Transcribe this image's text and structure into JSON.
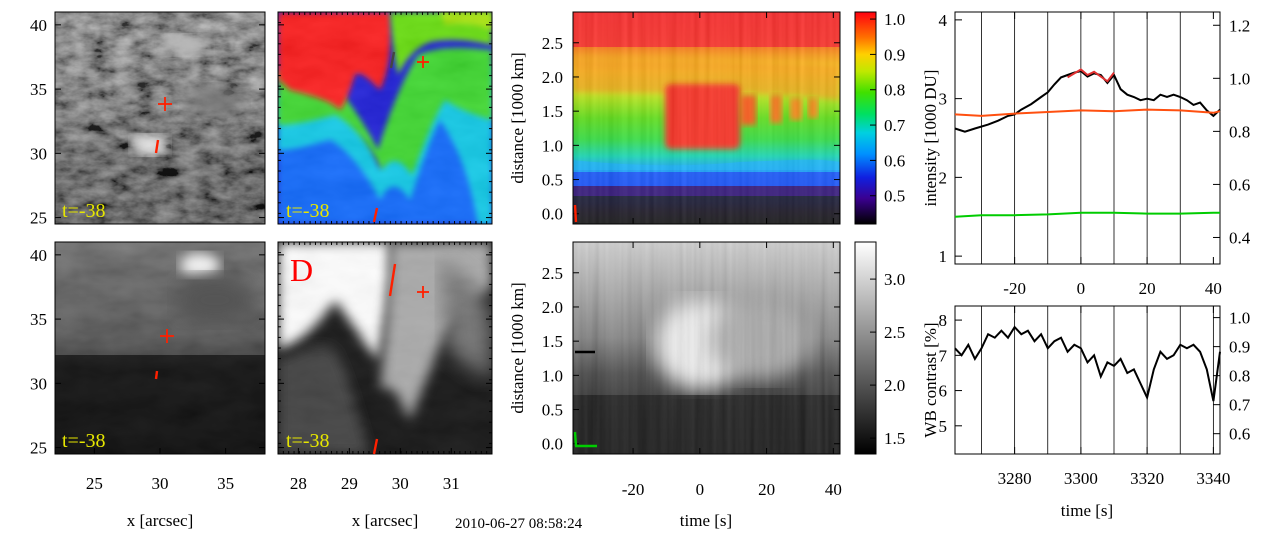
{
  "timestamp": "2010-06-27 08:58:24",
  "colors": {
    "yellow_label": "#e6e600",
    "red_marker": "#ff2000",
    "letter_red": "#ff0000",
    "line_black": "#000000",
    "line_red": "#e03030",
    "line_orange": "#ff5010",
    "line_green": "#00cc00"
  },
  "chart_data": [
    {
      "id": "img-top-1",
      "type": "image",
      "label": "t=-38",
      "x_range": [
        22,
        38
      ],
      "y_range": [
        24.5,
        41
      ],
      "y_ticks": [
        "25",
        "30",
        "35",
        "40"
      ],
      "x_ticks": [],
      "xlabel": "",
      "annotations": [
        {
          "type": "cross",
          "x": 30.4,
          "y": 33.8
        },
        {
          "type": "segment",
          "x1": 30.0,
          "y1": 31.3,
          "x2": 29.9,
          "y2": 30.2
        }
      ]
    },
    {
      "id": "img-top-2",
      "type": "image",
      "label": "t=-38",
      "x_range": [
        27.6,
        31.8
      ],
      "y_range": [
        24.5,
        41
      ],
      "annotations": [
        {
          "type": "cross"
        },
        {
          "type": "segment"
        }
      ]
    },
    {
      "id": "img-bottom-1",
      "type": "image",
      "label": "t=-38",
      "x_range": [
        22,
        38
      ],
      "y_range": [
        24.5,
        41
      ],
      "y_ticks": [
        "25",
        "30",
        "35",
        "40"
      ],
      "x_ticks": [
        "25",
        "30",
        "35"
      ],
      "xlabel": "x [arcsec]"
    },
    {
      "id": "img-bottom-2",
      "type": "image",
      "label": "t=-38",
      "panel_letter": "D",
      "x_range": [
        27.6,
        31.8
      ],
      "y_range": [
        24.5,
        41
      ],
      "x_ticks": [
        "28",
        "29",
        "30",
        "31"
      ],
      "xlabel": "x [arcsec]"
    },
    {
      "id": "heatmap-top",
      "type": "heatmap",
      "ylabel": "distance [1000 km]",
      "y_range": [
        -0.15,
        2.95
      ],
      "y_ticks": [
        "0.0",
        "0.5",
        "1.0",
        "1.5",
        "2.0",
        "2.5"
      ],
      "x_range": [
        -38,
        42
      ],
      "colorbar": {
        "range": [
          0.42,
          1.02
        ],
        "ticks": [
          "0.5",
          "0.6",
          "0.7",
          "0.8",
          "0.9",
          "1.0"
        ]
      }
    },
    {
      "id": "heatmap-bottom",
      "type": "heatmap",
      "ylabel": "distance [1000 km]",
      "xlabel": "time [s]",
      "y_range": [
        -0.15,
        2.95
      ],
      "y_ticks": [
        "0.0",
        "0.5",
        "1.0",
        "1.5",
        "2.0",
        "2.5"
      ],
      "x_range": [
        -38,
        42
      ],
      "x_ticks": [
        "-20",
        "0",
        "20",
        "40"
      ],
      "colorbar": {
        "range": [
          1.35,
          3.35
        ],
        "ticks": [
          "1.5",
          "2.0",
          "2.5",
          "3.0"
        ]
      }
    },
    {
      "id": "intensity-plot",
      "type": "line",
      "ylabel": "intensity [1000 DU]",
      "x_range": [
        -38,
        42
      ],
      "x_ticks": [
        "-20",
        "0",
        "20",
        "40"
      ],
      "y_left": {
        "range": [
          0.9,
          4.1
        ],
        "ticks": [
          "1",
          "2",
          "3",
          "4"
        ]
      },
      "y_right": {
        "range": [
          0.3,
          1.25
        ],
        "ticks": [
          "0.4",
          "0.6",
          "0.8",
          "1.0",
          "1.2"
        ]
      },
      "vertical_lines": [
        -30,
        -20,
        -10,
        0,
        10,
        20,
        30
      ],
      "series": [
        {
          "name": "black",
          "color": "#000000",
          "x": [
            -38,
            -35,
            -32,
            -28,
            -25,
            -22,
            -20,
            -18,
            -15,
            -12,
            -10,
            -8,
            -6,
            -4,
            -2,
            0,
            2,
            4,
            6,
            8,
            10,
            12,
            14,
            16,
            18,
            20,
            22,
            24,
            26,
            28,
            30,
            32,
            34,
            36,
            38,
            40,
            42
          ],
          "y": [
            2.62,
            2.58,
            2.62,
            2.67,
            2.72,
            2.78,
            2.8,
            2.86,
            2.93,
            3.02,
            3.08,
            3.18,
            3.27,
            3.3,
            3.33,
            3.35,
            3.28,
            3.32,
            3.3,
            3.2,
            3.3,
            3.12,
            3.05,
            3.02,
            2.98,
            3.0,
            2.98,
            3.05,
            3.02,
            3.05,
            3.02,
            2.98,
            2.92,
            2.95,
            2.85,
            2.78,
            2.86
          ]
        },
        {
          "name": "red",
          "color": "#e03030",
          "x": [
            -4,
            -2,
            0,
            2,
            4,
            6,
            8,
            10
          ],
          "y": [
            3.27,
            3.32,
            3.37,
            3.3,
            3.34,
            3.28,
            3.22,
            3.33
          ]
        },
        {
          "name": "orange",
          "color": "#ff5010",
          "x": [
            -38,
            -30,
            -20,
            -10,
            0,
            10,
            20,
            30,
            40,
            42
          ],
          "y": [
            2.8,
            2.78,
            2.81,
            2.83,
            2.85,
            2.84,
            2.86,
            2.85,
            2.82,
            2.84
          ]
        },
        {
          "name": "green",
          "color": "#00cc00",
          "x": [
            -38,
            -30,
            -20,
            -10,
            0,
            10,
            20,
            30,
            40,
            42
          ],
          "y": [
            1.5,
            1.52,
            1.52,
            1.53,
            1.55,
            1.55,
            1.54,
            1.54,
            1.55,
            1.55
          ]
        }
      ]
    },
    {
      "id": "wb-contrast-plot",
      "type": "line",
      "ylabel": "WB contrast [%]",
      "xlabel": "time [s]",
      "x_range": [
        3262,
        3342
      ],
      "x_ticks": [
        "3280",
        "3300",
        "3320",
        "3340"
      ],
      "y_left": {
        "range": [
          4.2,
          8.4
        ],
        "ticks": [
          "5",
          "6",
          "7",
          "8"
        ]
      },
      "y_right": {
        "range": [
          0.53,
          1.04
        ],
        "ticks": [
          "0.6",
          "0.7",
          "0.8",
          "0.9",
          "1.0"
        ]
      },
      "vertical_lines": [
        3270,
        3280,
        3290,
        3300,
        3310,
        3320,
        3330,
        3340
      ],
      "series": [
        {
          "name": "contrast",
          "color": "#000000",
          "x": [
            3262,
            3264,
            3266,
            3268,
            3270,
            3272,
            3274,
            3276,
            3278,
            3280,
            3282,
            3284,
            3286,
            3288,
            3290,
            3292,
            3294,
            3296,
            3298,
            3300,
            3302,
            3304,
            3306,
            3308,
            3310,
            3312,
            3314,
            3316,
            3318,
            3320,
            3322,
            3324,
            3326,
            3328,
            3330,
            3332,
            3334,
            3336,
            3338,
            3340,
            3342
          ],
          "y": [
            7.2,
            7.0,
            7.3,
            6.9,
            7.2,
            7.6,
            7.5,
            7.7,
            7.5,
            7.8,
            7.6,
            7.7,
            7.4,
            7.6,
            7.2,
            7.4,
            7.5,
            7.1,
            7.3,
            7.2,
            6.8,
            7.0,
            6.4,
            6.8,
            6.7,
            6.9,
            6.5,
            6.6,
            6.2,
            5.8,
            6.6,
            7.1,
            6.9,
            7.0,
            7.3,
            7.2,
            7.3,
            7.1,
            6.6,
            5.7,
            7.1
          ]
        }
      ]
    }
  ]
}
